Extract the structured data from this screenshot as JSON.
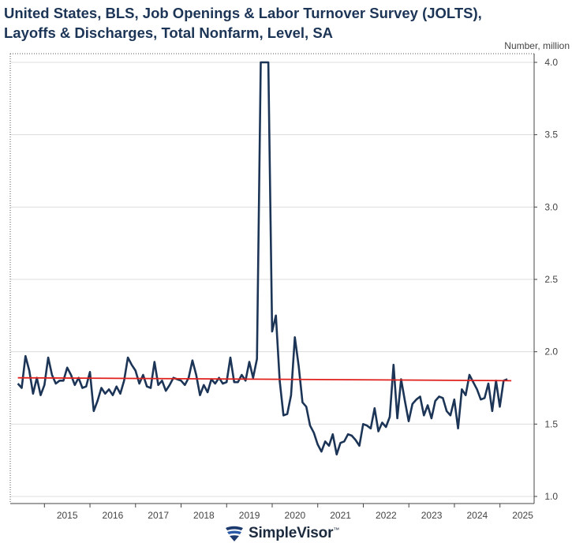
{
  "chart_data": {
    "type": "line",
    "title_lines": [
      "United States, BLS, Job Openings & Labor Turnover Survey (JOLTS),",
      "Layoffs & Discharges, Total Nonfarm, Level, SA"
    ],
    "ylabel": "Number, million",
    "ylim": [
      1.0,
      4.0
    ],
    "y_ticks": [
      1.0,
      1.5,
      2.0,
      2.5,
      3.0,
      3.5,
      4.0
    ],
    "y_tick_labels": [
      "1.0",
      "1.5",
      "2.0",
      "2.5",
      "3.0",
      "3.5",
      "4.0"
    ],
    "x_ticks": [
      {
        "label": "2015",
        "t": 2015.5
      },
      {
        "label": "2016",
        "t": 2016.5
      },
      {
        "label": "2017",
        "t": 2017.5
      },
      {
        "label": "2018",
        "t": 2018.5
      },
      {
        "label": "2019",
        "t": 2019.5
      },
      {
        "label": "2020",
        "t": 2020.5
      },
      {
        "label": "2021",
        "t": 2021.5
      },
      {
        "label": "2022",
        "t": 2022.5
      },
      {
        "label": "2023",
        "t": 2023.5
      },
      {
        "label": "2024",
        "t": 2024.5
      },
      {
        "label": "2025",
        "t": 2025.5
      }
    ],
    "xlim": [
      2014.25,
      2025.75
    ],
    "grid": true,
    "series": [
      {
        "name": "Layoffs & Discharges, Total Nonfarm",
        "color": "#1c3557",
        "start": 2014.417,
        "step": 0.0833,
        "values": [
          1.78,
          1.75,
          1.97,
          1.87,
          1.71,
          1.82,
          1.7,
          1.77,
          1.96,
          1.84,
          1.78,
          1.8,
          1.8,
          1.89,
          1.84,
          1.77,
          1.82,
          1.75,
          1.76,
          1.86,
          1.59,
          1.66,
          1.75,
          1.71,
          1.74,
          1.7,
          1.76,
          1.71,
          1.8,
          1.96,
          1.91,
          1.87,
          1.78,
          1.84,
          1.76,
          1.75,
          1.93,
          1.77,
          1.8,
          1.73,
          1.77,
          1.82,
          1.81,
          1.8,
          1.77,
          1.82,
          1.94,
          1.84,
          1.7,
          1.77,
          1.72,
          1.81,
          1.78,
          1.82,
          1.78,
          1.79,
          1.96,
          1.79,
          1.79,
          1.84,
          1.8,
          1.93,
          1.82,
          1.95,
          4.0,
          4.0,
          4.0,
          2.14,
          2.25,
          1.8,
          1.56,
          1.57,
          1.7,
          2.1,
          1.9,
          1.65,
          1.62,
          1.49,
          1.44,
          1.36,
          1.31,
          1.38,
          1.35,
          1.43,
          1.29,
          1.37,
          1.38,
          1.43,
          1.42,
          1.39,
          1.35,
          1.5,
          1.49,
          1.47,
          1.61,
          1.45,
          1.51,
          1.48,
          1.55,
          1.91,
          1.54,
          1.81,
          1.66,
          1.52,
          1.64,
          1.67,
          1.69,
          1.56,
          1.63,
          1.54,
          1.66,
          1.69,
          1.68,
          1.59,
          1.56,
          1.67,
          1.47,
          1.74,
          1.7,
          1.84,
          1.79,
          1.74,
          1.67,
          1.68,
          1.78,
          1.59,
          1.8,
          1.62,
          1.8,
          1.81
        ]
      },
      {
        "name": "Trend",
        "color": "#e0201b",
        "x": [
          2014.417,
          2025.25
        ],
        "values": [
          1.82,
          1.8
        ]
      }
    ]
  },
  "brand": {
    "name": "SimpleVisor",
    "tm": "™"
  },
  "colors": {
    "title": "#1c3557",
    "grid": "#dcdcdc",
    "axis": "#444444"
  }
}
